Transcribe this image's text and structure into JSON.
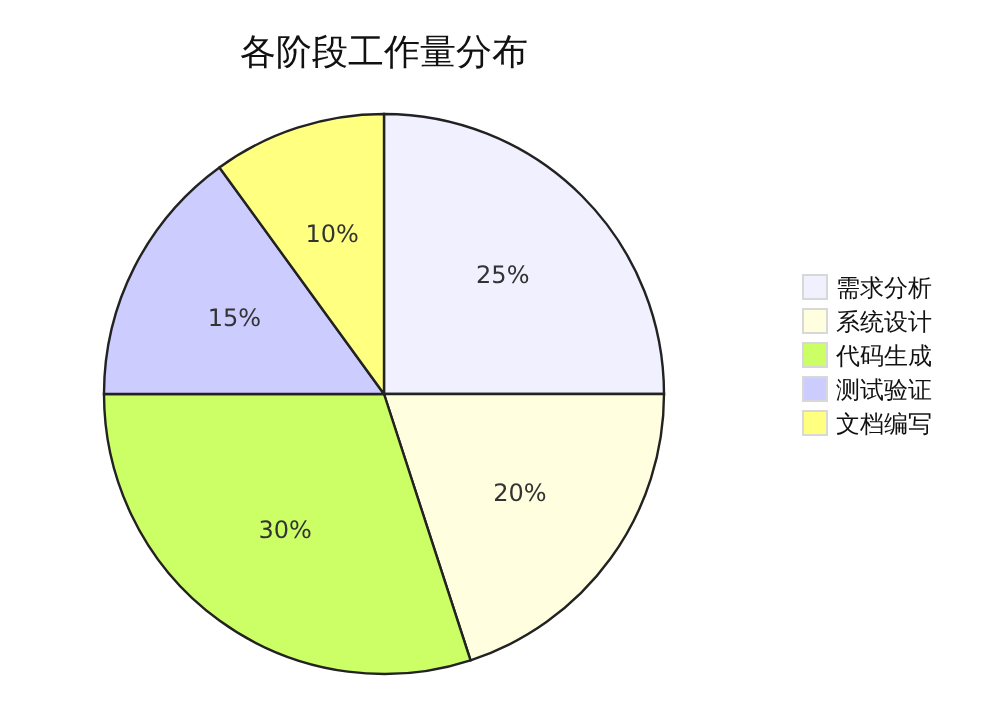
{
  "chart_data": {
    "type": "pie",
    "title": "各阶段工作量分布",
    "categories": [
      "需求分析",
      "系统设计",
      "代码生成",
      "测试验证",
      "文档编写"
    ],
    "values": [
      25,
      20,
      30,
      15,
      10
    ],
    "colors": [
      "#f0f0ff",
      "#ffffe0",
      "#ccff66",
      "#ccccff",
      "#ffff80"
    ],
    "value_labels": [
      "25%",
      "20%",
      "30%",
      "15%",
      "10%"
    ],
    "legend": "right"
  }
}
